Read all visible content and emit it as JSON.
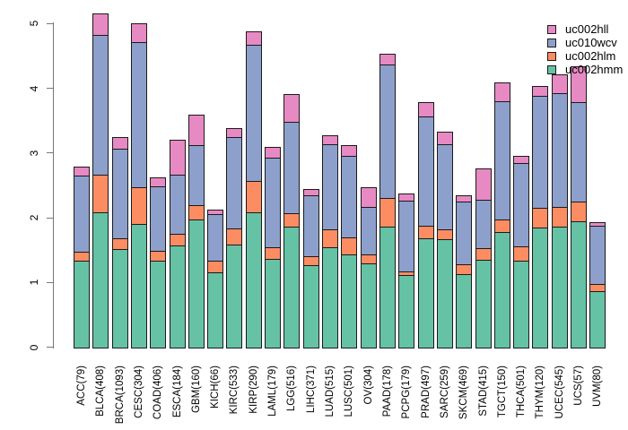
{
  "chart_data": {
    "type": "bar",
    "stacked": true,
    "title": "",
    "xlabel": "",
    "ylabel": "",
    "ylim": [
      0,
      5
    ],
    "yticks": [
      "0",
      "1",
      "2",
      "3",
      "4",
      "5"
    ],
    "grid": false,
    "legend_position": "top-right",
    "legend_order": [
      "uc002hll",
      "uc010wcv",
      "uc002hlm",
      "uc002hmm"
    ],
    "categories": [
      "ACC(79)",
      "BLCA(408)",
      "BRCA(1093)",
      "CESC(304)",
      "COAD(406)",
      "ESCA(184)",
      "GBM(160)",
      "KICH(66)",
      "KIRC(533)",
      "KIRP(290)",
      "LAML(179)",
      "LGG(516)",
      "LIHC(371)",
      "LUAD(515)",
      "LUSC(501)",
      "OV(304)",
      "PAAD(178)",
      "PCPG(179)",
      "PRAD(497)",
      "SARC(259)",
      "SKCM(469)",
      "STAD(415)",
      "TGCT(150)",
      "THCA(501)",
      "THYM(120)",
      "UCEC(545)",
      "UCS(57)",
      "UVM(80)"
    ],
    "series": [
      {
        "name": "uc002hmm",
        "color": "#66C2A5",
        "values": [
          1.34,
          2.08,
          1.51,
          1.9,
          1.33,
          1.57,
          1.97,
          1.15,
          1.59,
          2.08,
          1.36,
          1.86,
          1.26,
          1.54,
          1.43,
          1.3,
          1.86,
          1.11,
          1.68,
          1.67,
          1.13,
          1.35,
          1.78,
          1.33,
          1.85,
          1.86,
          1.94,
          0.87
        ]
      },
      {
        "name": "uc002hlm",
        "color": "#FC8D62",
        "values": [
          0.14,
          0.59,
          0.17,
          0.57,
          0.16,
          0.18,
          0.23,
          0.18,
          0.24,
          0.49,
          0.19,
          0.21,
          0.14,
          0.28,
          0.26,
          0.13,
          0.44,
          0.06,
          0.2,
          0.15,
          0.15,
          0.18,
          0.19,
          0.23,
          0.3,
          0.31,
          0.31,
          0.11
        ]
      },
      {
        "name": "uc010wcv",
        "color": "#8DA0CB",
        "values": [
          1.17,
          2.15,
          1.38,
          2.25,
          1.0,
          0.92,
          0.92,
          0.73,
          1.42,
          2.1,
          1.38,
          1.41,
          0.94,
          1.32,
          1.27,
          0.74,
          2.07,
          1.1,
          1.69,
          1.31,
          0.97,
          0.75,
          1.83,
          1.29,
          1.73,
          1.75,
          1.54,
          0.89
        ]
      },
      {
        "name": "uc002hll",
        "color": "#E78AC3",
        "values": [
          0.14,
          0.33,
          0.19,
          0.28,
          0.14,
          0.54,
          0.47,
          0.07,
          0.13,
          0.21,
          0.16,
          0.43,
          0.1,
          0.14,
          0.16,
          0.3,
          0.17,
          0.1,
          0.21,
          0.2,
          0.09,
          0.48,
          0.29,
          0.1,
          0.15,
          0.3,
          0.55,
          0.06
        ]
      }
    ]
  },
  "colors": {
    "uc002hll": "#E78AC3",
    "uc010wcv": "#8DA0CB",
    "uc002hlm": "#FC8D62",
    "uc002hmm": "#66C2A5",
    "bar_border": "#1a1a1a",
    "axis": "#777777",
    "background": "#ffffff"
  }
}
